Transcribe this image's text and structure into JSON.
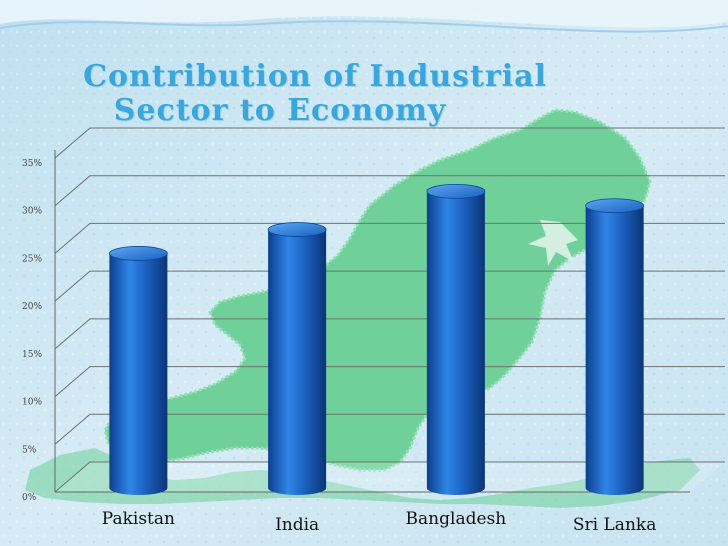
{
  "colors": {
    "background": "#cfe6f2",
    "map_green": "#6bcf95",
    "title": "#3aa6dd",
    "bar": "#1a5fc0",
    "grid": "#666666"
  },
  "chart_data": {
    "type": "bar",
    "title_line1": "Contribution of  Industrial",
    "title_line2": "Sector to  Economy",
    "xlabel": "",
    "ylabel": "",
    "categories": [
      "Pakistan",
      "India",
      "Bangladesh",
      "Sri Lanka"
    ],
    "values": [
      25,
      27.5,
      31.5,
      30
    ],
    "ylim": [
      0,
      35
    ],
    "yticks": [
      0,
      5,
      10,
      15,
      20,
      25,
      30,
      35
    ],
    "ytick_labels": [
      "0%",
      "5%",
      "10%",
      "15%",
      "20%",
      "25%",
      "30%",
      "35%"
    ],
    "grid": true,
    "legend": "none"
  }
}
